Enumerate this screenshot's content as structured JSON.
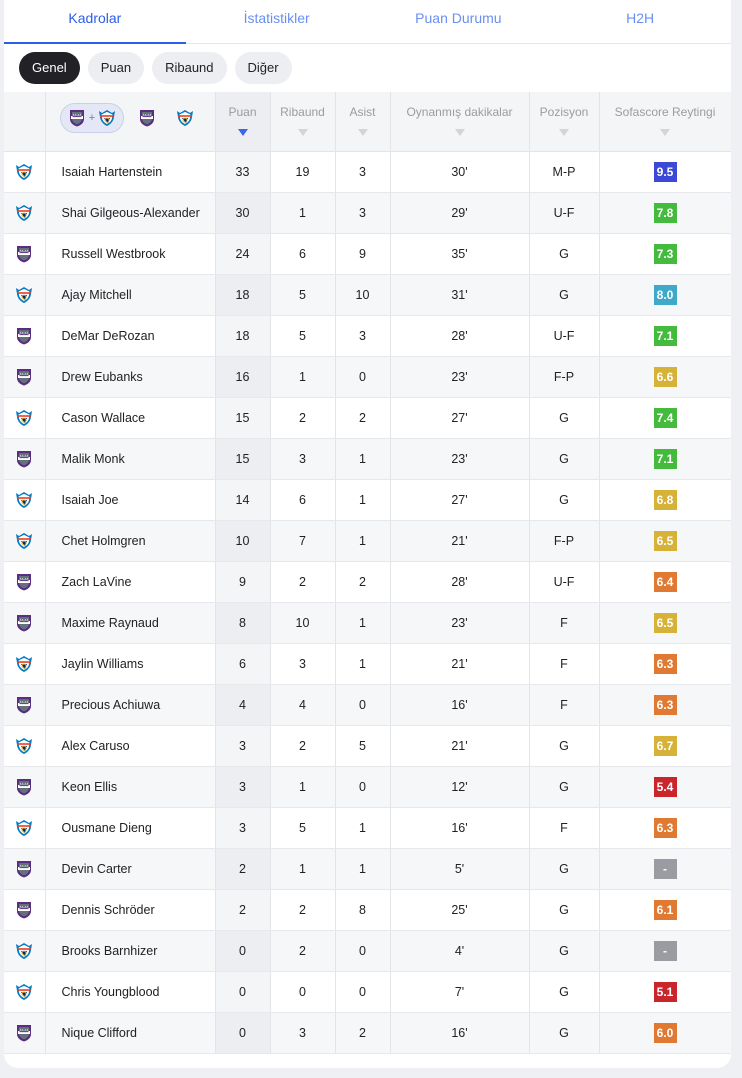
{
  "tabs": [
    "Kadrolar",
    "İstatistikler",
    "Puan Durumu",
    "H2H"
  ],
  "chips": [
    "Genel",
    "Puan",
    "Ribaund",
    "Diğer"
  ],
  "combo_plus": "+",
  "columns": [
    "Puan",
    "Ribaund",
    "Asist",
    "Oynanmış dakikalar",
    "Pozisyon",
    "Sofascore Reytingi"
  ],
  "colors": {
    "accent": "#2c5ee8",
    "blue_rating": "#3a49d6",
    "green": "#44bb3d",
    "teal": "#3fa9c9",
    "yellow": "#d6b238",
    "orange": "#e07a32",
    "red": "#c9252b",
    "gray": "#9a9ca1"
  },
  "rows": [
    {
      "team": "okc",
      "name": "Isaiah Hartenstein",
      "pts": "33",
      "reb": "19",
      "ast": "3",
      "min": "30'",
      "pos": "M-P",
      "rating": "9.5",
      "rc": "#3a49d6"
    },
    {
      "team": "okc",
      "name": "Shai Gilgeous-Alexander",
      "pts": "30",
      "reb": "1",
      "ast": "3",
      "min": "29'",
      "pos": "U-F",
      "rating": "7.8",
      "rc": "#44bb3d"
    },
    {
      "team": "sac",
      "name": "Russell Westbrook",
      "pts": "24",
      "reb": "6",
      "ast": "9",
      "min": "35'",
      "pos": "G",
      "rating": "7.3",
      "rc": "#44bb3d"
    },
    {
      "team": "okc",
      "name": "Ajay Mitchell",
      "pts": "18",
      "reb": "5",
      "ast": "10",
      "min": "31'",
      "pos": "G",
      "rating": "8.0",
      "rc": "#3fa9c9"
    },
    {
      "team": "sac",
      "name": "DeMar DeRozan",
      "pts": "18",
      "reb": "5",
      "ast": "3",
      "min": "28'",
      "pos": "U-F",
      "rating": "7.1",
      "rc": "#44bb3d"
    },
    {
      "team": "sac",
      "name": "Drew Eubanks",
      "pts": "16",
      "reb": "1",
      "ast": "0",
      "min": "23'",
      "pos": "F-P",
      "rating": "6.6",
      "rc": "#d6b238"
    },
    {
      "team": "okc",
      "name": "Cason Wallace",
      "pts": "15",
      "reb": "2",
      "ast": "2",
      "min": "27'",
      "pos": "G",
      "rating": "7.4",
      "rc": "#44bb3d"
    },
    {
      "team": "sac",
      "name": "Malik Monk",
      "pts": "15",
      "reb": "3",
      "ast": "1",
      "min": "23'",
      "pos": "G",
      "rating": "7.1",
      "rc": "#44bb3d"
    },
    {
      "team": "okc",
      "name": "Isaiah Joe",
      "pts": "14",
      "reb": "6",
      "ast": "1",
      "min": "27'",
      "pos": "G",
      "rating": "6.8",
      "rc": "#d6b238"
    },
    {
      "team": "okc",
      "name": "Chet Holmgren",
      "pts": "10",
      "reb": "7",
      "ast": "1",
      "min": "21'",
      "pos": "F-P",
      "rating": "6.5",
      "rc": "#d6b238"
    },
    {
      "team": "sac",
      "name": "Zach LaVine",
      "pts": "9",
      "reb": "2",
      "ast": "2",
      "min": "28'",
      "pos": "U-F",
      "rating": "6.4",
      "rc": "#e07a32"
    },
    {
      "team": "sac",
      "name": "Maxime Raynaud",
      "pts": "8",
      "reb": "10",
      "ast": "1",
      "min": "23'",
      "pos": "F",
      "rating": "6.5",
      "rc": "#d6b238"
    },
    {
      "team": "okc",
      "name": "Jaylin Williams",
      "pts": "6",
      "reb": "3",
      "ast": "1",
      "min": "21'",
      "pos": "F",
      "rating": "6.3",
      "rc": "#e07a32"
    },
    {
      "team": "sac",
      "name": "Precious Achiuwa",
      "pts": "4",
      "reb": "4",
      "ast": "0",
      "min": "16'",
      "pos": "F",
      "rating": "6.3",
      "rc": "#e07a32"
    },
    {
      "team": "okc",
      "name": "Alex Caruso",
      "pts": "3",
      "reb": "2",
      "ast": "5",
      "min": "21'",
      "pos": "G",
      "rating": "6.7",
      "rc": "#d6b238"
    },
    {
      "team": "sac",
      "name": "Keon Ellis",
      "pts": "3",
      "reb": "1",
      "ast": "0",
      "min": "12'",
      "pos": "G",
      "rating": "5.4",
      "rc": "#c9252b"
    },
    {
      "team": "okc",
      "name": "Ousmane Dieng",
      "pts": "3",
      "reb": "5",
      "ast": "1",
      "min": "16'",
      "pos": "F",
      "rating": "6.3",
      "rc": "#e07a32"
    },
    {
      "team": "sac",
      "name": "Devin Carter",
      "pts": "2",
      "reb": "1",
      "ast": "1",
      "min": "5'",
      "pos": "G",
      "rating": "-",
      "rc": "#9a9ca1"
    },
    {
      "team": "sac",
      "name": "Dennis Schröder",
      "pts": "2",
      "reb": "2",
      "ast": "8",
      "min": "25'",
      "pos": "G",
      "rating": "6.1",
      "rc": "#e07a32"
    },
    {
      "team": "okc",
      "name": "Brooks Barnhizer",
      "pts": "0",
      "reb": "2",
      "ast": "0",
      "min": "4'",
      "pos": "G",
      "rating": "-",
      "rc": "#9a9ca1"
    },
    {
      "team": "okc",
      "name": "Chris Youngblood",
      "pts": "0",
      "reb": "0",
      "ast": "0",
      "min": "7'",
      "pos": "G",
      "rating": "5.1",
      "rc": "#c9252b"
    },
    {
      "team": "sac",
      "name": "Nique Clifford",
      "pts": "0",
      "reb": "3",
      "ast": "2",
      "min": "16'",
      "pos": "G",
      "rating": "6.0",
      "rc": "#e07a32"
    }
  ]
}
